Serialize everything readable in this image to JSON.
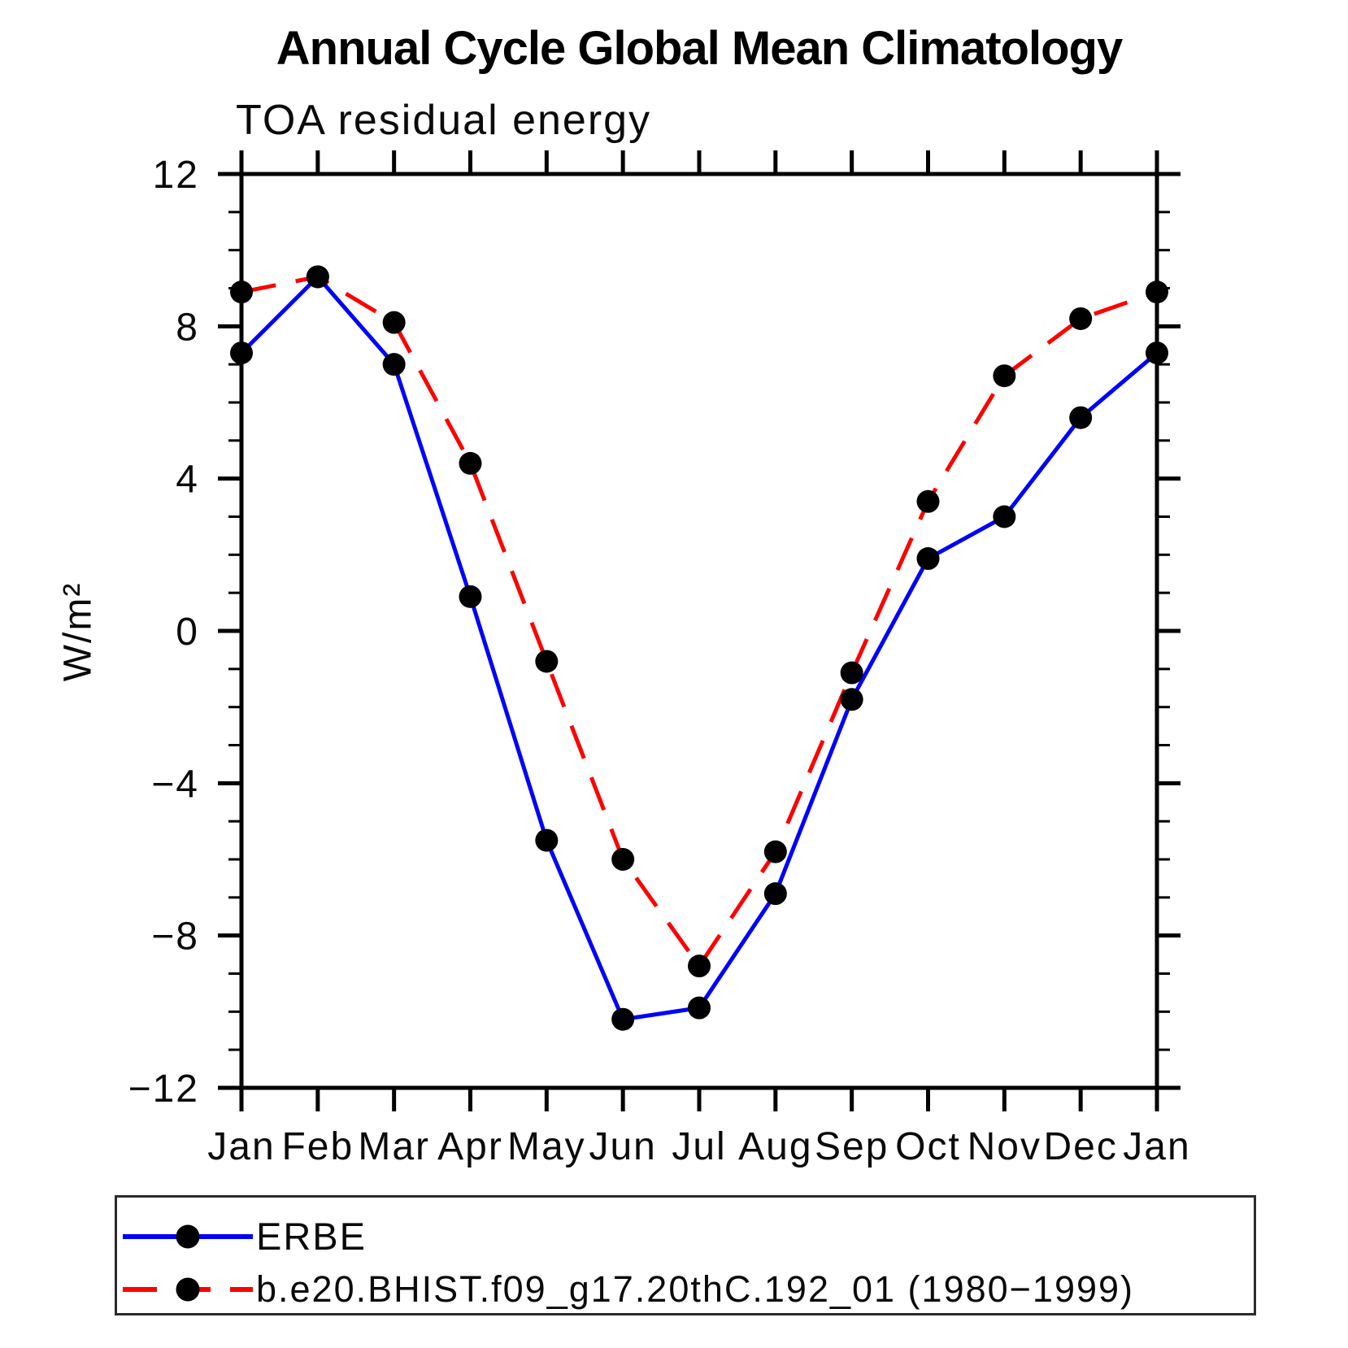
{
  "title": "Annual Cycle Global Mean Climatology",
  "subtitle": "TOA residual energy",
  "y_axis_label": "W/m²",
  "legend": {
    "items": [
      {
        "label": "ERBE",
        "color": "#0000ff",
        "style": "solid"
      },
      {
        "label": "b.e20.BHIST.f09_g17.20thC.192_01 (1980−1999)",
        "color": "#ff0000",
        "style": "dashed"
      }
    ]
  },
  "chart_data": {
    "type": "line",
    "title": "Annual Cycle Global Mean Climatology",
    "subtitle": "TOA residual energy",
    "ylabel": "W/m²",
    "x": [
      "Jan",
      "Feb",
      "Mar",
      "Apr",
      "May",
      "Jun",
      "Jul",
      "Aug",
      "Sep",
      "Oct",
      "Nov",
      "Dec",
      "Jan"
    ],
    "series": [
      {
        "name": "ERBE",
        "color": "#0000ff",
        "line_style": "solid",
        "marker": "filled-circle",
        "marker_color": "#000000",
        "values": [
          7.3,
          9.3,
          7.0,
          0.9,
          -5.5,
          -10.2,
          -9.9,
          -6.9,
          -1.8,
          1.9,
          3.0,
          5.6,
          7.3
        ]
      },
      {
        "name": "b.e20.BHIST.f09_g17.20thC.192_01 (1980−1999)",
        "color": "#ff0000",
        "line_style": "dashed",
        "marker": "filled-circle",
        "marker_color": "#000000",
        "values": [
          8.9,
          9.3,
          8.1,
          4.4,
          -0.8,
          -6.0,
          -8.8,
          -5.8,
          -1.1,
          3.4,
          6.7,
          8.2,
          8.9
        ]
      }
    ],
    "ylim": [
      -12,
      12
    ],
    "yticks_major": [
      12,
      8,
      4,
      0,
      -4,
      -8,
      -12
    ],
    "ytick_labels": [
      "12",
      "8",
      "4",
      "0",
      "−4",
      "−8",
      "−12"
    ],
    "ytick_minor_step": 1,
    "grid": false,
    "legend_position": "bottom-left-box"
  }
}
